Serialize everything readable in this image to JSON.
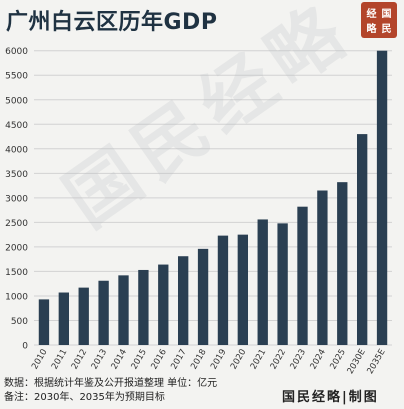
{
  "title": "广州白云区历年GDP",
  "seal_chars": [
    "经",
    "国",
    "略",
    "民"
  ],
  "watermark": "国民经略",
  "footer": {
    "source": "数据：根据统计年鉴及公开报道整理  单位：亿元",
    "note": "备注：2030年、2035年为预期目标"
  },
  "brand": "国民经略|制图",
  "colors": {
    "bar": "#2a3f52",
    "grid": "#d2d2d2",
    "background": "#f3f3f1",
    "seal": "#b3452b"
  },
  "chart_data": {
    "type": "bar",
    "categories": [
      "2010",
      "2011",
      "2012",
      "2013",
      "2014",
      "2015",
      "2016",
      "2017",
      "2018",
      "2019",
      "2020",
      "2021",
      "2022",
      "2023",
      "2024",
      "2025",
      "2030E",
      "2035E"
    ],
    "values": [
      930,
      1070,
      1170,
      1310,
      1420,
      1530,
      1640,
      1810,
      1960,
      2230,
      2250,
      2560,
      2480,
      2820,
      3150,
      3320,
      4300,
      6000
    ],
    "yticks": [
      0,
      500,
      1000,
      1500,
      2000,
      2500,
      3000,
      3500,
      4000,
      4500,
      5000,
      5500,
      6000
    ],
    "ylim": [
      0,
      6300
    ],
    "grid": true,
    "xlabel": "",
    "ylabel": ""
  }
}
